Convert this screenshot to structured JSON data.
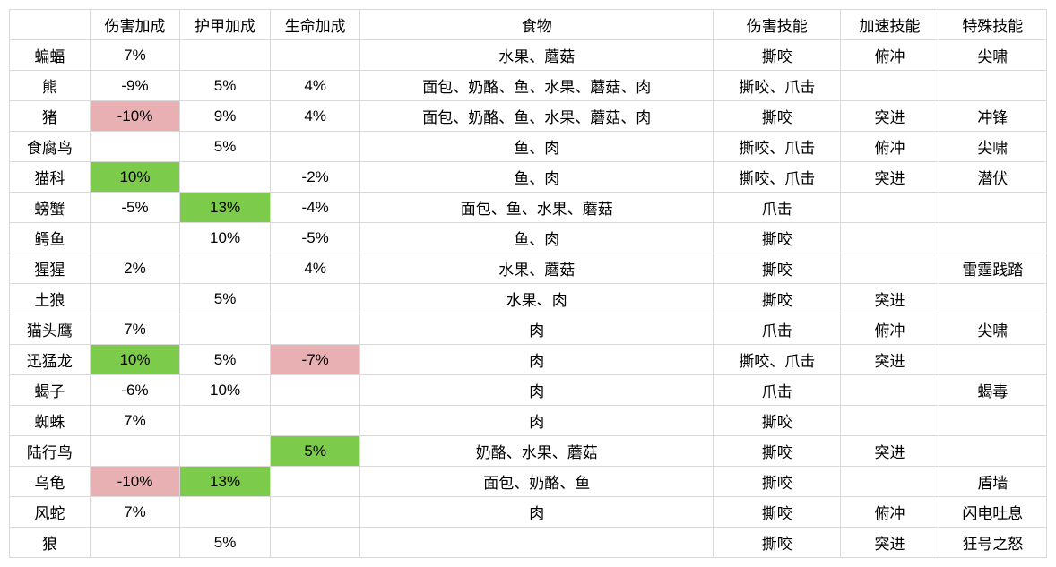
{
  "highlight": {
    "green": "#7ccb4b",
    "red": "#e9b0b3"
  },
  "headers": {
    "name": "",
    "dmg": "伤害加成",
    "arm": "护甲加成",
    "hp": "生命加成",
    "food": "食物",
    "sk1": "伤害技能",
    "sk2": "加速技能",
    "sk3": "特殊技能"
  },
  "rows": [
    {
      "name": "蝙蝠",
      "dmg": "7%",
      "arm": "",
      "hp": "",
      "food": "水果、蘑菇",
      "sk1": "撕咬",
      "sk2": "俯冲",
      "sk3": "尖啸"
    },
    {
      "name": "熊",
      "dmg": "-9%",
      "arm": "5%",
      "hp": "4%",
      "food": "面包、奶酪、鱼、水果、蘑菇、肉",
      "sk1": "撕咬、爪击",
      "sk2": "",
      "sk3": ""
    },
    {
      "name": "猪",
      "dmg": "-10%",
      "dmg_hl": "red",
      "arm": "9%",
      "hp": "4%",
      "food": "面包、奶酪、鱼、水果、蘑菇、肉",
      "sk1": "撕咬",
      "sk2": "突进",
      "sk3": "冲锋"
    },
    {
      "name": "食腐鸟",
      "dmg": "",
      "arm": "5%",
      "hp": "",
      "food": "鱼、肉",
      "sk1": "撕咬、爪击",
      "sk2": "俯冲",
      "sk3": "尖啸"
    },
    {
      "name": "猫科",
      "dmg": "10%",
      "dmg_hl": "green",
      "arm": "",
      "hp": "-2%",
      "food": "鱼、肉",
      "sk1": "撕咬、爪击",
      "sk2": "突进",
      "sk3": "潜伏"
    },
    {
      "name": "螃蟹",
      "dmg": "-5%",
      "arm": "13%",
      "arm_hl": "green",
      "hp": "-4%",
      "food": "面包、鱼、水果、蘑菇",
      "sk1": "爪击",
      "sk2": "",
      "sk3": ""
    },
    {
      "name": "鳄鱼",
      "dmg": "",
      "arm": "10%",
      "hp": "-5%",
      "food": "鱼、肉",
      "sk1": "撕咬",
      "sk2": "",
      "sk3": ""
    },
    {
      "name": "猩猩",
      "dmg": "2%",
      "arm": "",
      "hp": "4%",
      "food": "水果、蘑菇",
      "sk1": "撕咬",
      "sk2": "",
      "sk3": "雷霆践踏"
    },
    {
      "name": "土狼",
      "dmg": "",
      "arm": "5%",
      "hp": "",
      "food": "水果、肉",
      "sk1": "撕咬",
      "sk2": "突进",
      "sk3": ""
    },
    {
      "name": "猫头鹰",
      "dmg": "7%",
      "arm": "",
      "hp": "",
      "food": "肉",
      "sk1": "爪击",
      "sk2": "俯冲",
      "sk3": "尖啸"
    },
    {
      "name": "迅猛龙",
      "dmg": "10%",
      "dmg_hl": "green",
      "arm": "5%",
      "hp": "-7%",
      "hp_hl": "red",
      "food": "肉",
      "sk1": "撕咬、爪击",
      "sk2": "突进",
      "sk3": ""
    },
    {
      "name": "蝎子",
      "dmg": "-6%",
      "arm": "10%",
      "hp": "",
      "food": "肉",
      "sk1": "爪击",
      "sk2": "",
      "sk3": "蝎毒"
    },
    {
      "name": "蜘蛛",
      "dmg": "7%",
      "arm": "",
      "hp": "",
      "food": "肉",
      "sk1": "撕咬",
      "sk2": "",
      "sk3": ""
    },
    {
      "name": "陆行鸟",
      "dmg": "",
      "arm": "",
      "hp": "5%",
      "hp_hl": "green",
      "food": "奶酪、水果、蘑菇",
      "sk1": "撕咬",
      "sk2": "突进",
      "sk3": ""
    },
    {
      "name": "乌龟",
      "dmg": "-10%",
      "dmg_hl": "red",
      "arm": "13%",
      "arm_hl": "green",
      "hp": "",
      "food": "面包、奶酪、鱼",
      "sk1": "撕咬",
      "sk2": "",
      "sk3": "盾墙"
    },
    {
      "name": "风蛇",
      "dmg": "7%",
      "arm": "",
      "hp": "",
      "food": "肉",
      "sk1": "撕咬",
      "sk2": "俯冲",
      "sk3": "闪电吐息"
    },
    {
      "name": "狼",
      "dmg": "",
      "arm": "5%",
      "hp": "",
      "food": "",
      "sk1": "撕咬",
      "sk2": "突进",
      "sk3": "狂号之怒"
    }
  ]
}
